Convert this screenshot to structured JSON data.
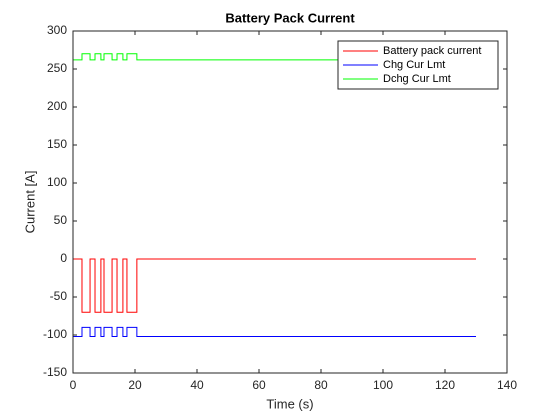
{
  "chart_data": {
    "type": "line",
    "title": "Battery Pack Current",
    "xlabel": "Time (s)",
    "ylabel": "Current [A]",
    "x": [
      0,
      2.9,
      2.9,
      5.5,
      5.5,
      7.1,
      7.1,
      9,
      9,
      10,
      10,
      12.6,
      12.6,
      14.2,
      14.2,
      16.1,
      16.1,
      17.4,
      17.4,
      20.6,
      20.6,
      130
    ],
    "series": [
      {
        "name": "Battery pack current",
        "color": "#ff0000",
        "values": [
          0,
          0,
          -70,
          -70,
          0,
          0,
          -70,
          -70,
          0,
          0,
          -70,
          -70,
          0,
          0,
          -70,
          -70,
          0,
          0,
          -70,
          -70,
          0,
          0
        ]
      },
      {
        "name": "Chg Cur Lmt",
        "color": "#0000ff",
        "values": [
          -102,
          -102,
          -90,
          -90,
          -102,
          -102,
          -90,
          -90,
          -102,
          -102,
          -90,
          -90,
          -102,
          -102,
          -90,
          -90,
          -102,
          -102,
          -90,
          -90,
          -102,
          -102
        ]
      },
      {
        "name": "Dchg Cur Lmt",
        "color": "#00ff00",
        "values": [
          262,
          262,
          270,
          270,
          262,
          262,
          270,
          270,
          262,
          262,
          270,
          270,
          262,
          262,
          270,
          270,
          262,
          262,
          270,
          270,
          262,
          262
        ]
      }
    ],
    "xlim": [
      0,
      140
    ],
    "xticks": [
      0,
      20,
      40,
      60,
      80,
      100,
      120,
      140
    ],
    "ylim": [
      -150,
      300
    ],
    "yticks": [
      -150,
      -100,
      -50,
      0,
      50,
      100,
      150,
      200,
      250,
      300
    ],
    "grid": false,
    "legend": "upper-right"
  }
}
